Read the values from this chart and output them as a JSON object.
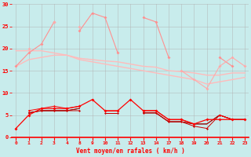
{
  "x_indices": [
    0,
    1,
    2,
    3,
    4,
    5,
    6,
    7,
    8,
    9,
    10,
    11,
    12,
    13,
    14,
    15,
    16,
    17,
    18
  ],
  "x_labels": [
    "0",
    "1",
    "2",
    "3",
    "4",
    "8",
    "9",
    "10",
    "11",
    "12",
    "13",
    "14",
    "17",
    "18",
    "19",
    "20",
    "21",
    "22",
    "23"
  ],
  "line_pink1": [
    16,
    19,
    21,
    26,
    null,
    24,
    28,
    27,
    19,
    null,
    27,
    26,
    18,
    null,
    null,
    null,
    18,
    16,
    null
  ],
  "line_pink2": [
    null,
    20,
    null,
    26,
    null,
    25,
    null,
    null,
    null,
    null,
    null,
    null,
    null,
    15,
    13,
    11,
    16,
    18,
    16
  ],
  "line_smooth1": [
    19.5,
    19.5,
    19.5,
    19.0,
    18.5,
    17.8,
    17.5,
    17.2,
    17.0,
    16.5,
    16.0,
    15.8,
    15.0,
    14.8,
    14.5,
    14.0,
    14.0,
    14.5,
    14.5
  ],
  "line_smooth2": [
    16.0,
    17.5,
    18.0,
    18.5,
    18.5,
    17.5,
    17.0,
    16.5,
    16.0,
    15.5,
    15.0,
    14.5,
    14.0,
    13.5,
    13.0,
    12.0,
    12.5,
    13.0,
    13.5
  ],
  "line_red1": [
    2,
    5,
    6.5,
    6.5,
    6.5,
    7,
    8.5,
    6,
    6,
    8.5,
    6,
    6,
    4,
    4,
    3,
    4,
    4,
    4,
    4
  ],
  "line_red2": [
    null,
    6,
    6.5,
    7,
    6.5,
    7,
    null,
    6,
    6,
    null,
    6,
    6,
    4,
    4,
    3,
    null,
    5,
    4,
    null
  ],
  "line_dark1": [
    null,
    5.5,
    6,
    6,
    6,
    6,
    null,
    5.5,
    5.5,
    null,
    5.5,
    5.5,
    3.5,
    3.5,
    2.5,
    2,
    5,
    4,
    4
  ],
  "line_dark2": [
    null,
    5.5,
    6,
    6,
    6,
    6.5,
    null,
    5.5,
    5.5,
    null,
    5.5,
    5.5,
    3.5,
    3.5,
    3,
    3,
    5,
    4,
    4
  ],
  "line_black": [
    null,
    5.5,
    6,
    6,
    6,
    6.5,
    null,
    5.5,
    5.5,
    null,
    5.5,
    5.5,
    3.5,
    3.5,
    3,
    3,
    5,
    4,
    4
  ],
  "ylim": [
    0,
    30
  ],
  "yticks": [
    0,
    5,
    10,
    15,
    20,
    25,
    30
  ],
  "xlabel": "Vent moyen/en rafales ( km/h )",
  "bg_color": "#c8ecec",
  "grid_color": "#b0b0b0",
  "color_pink1": "#ff9090",
  "color_pink2": "#ffaaaa",
  "color_smooth": "#ffbbbb",
  "color_red": "#ff0000",
  "color_darkred": "#cc0000",
  "color_black": "#000000",
  "axis_color": "#ff0000"
}
